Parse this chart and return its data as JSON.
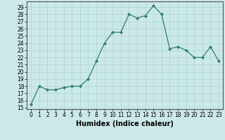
{
  "x": [
    0,
    1,
    2,
    3,
    4,
    5,
    6,
    7,
    8,
    9,
    10,
    11,
    12,
    13,
    14,
    15,
    16,
    17,
    18,
    19,
    20,
    21,
    22,
    23
  ],
  "y": [
    15.5,
    18.0,
    17.5,
    17.5,
    17.8,
    18.0,
    18.0,
    19.0,
    21.5,
    24.0,
    25.5,
    25.5,
    28.0,
    27.5,
    27.8,
    29.2,
    28.0,
    23.2,
    23.5,
    23.0,
    22.0,
    22.0,
    23.5,
    21.5
  ],
  "xlabel": "Humidex (Indice chaleur)",
  "xlim": [
    -0.5,
    23.5
  ],
  "ylim": [
    14.8,
    29.8
  ],
  "yticks": [
    15,
    16,
    17,
    18,
    19,
    20,
    21,
    22,
    23,
    24,
    25,
    26,
    27,
    28,
    29
  ],
  "xticks": [
    0,
    1,
    2,
    3,
    4,
    5,
    6,
    7,
    8,
    9,
    10,
    11,
    12,
    13,
    14,
    15,
    16,
    17,
    18,
    19,
    20,
    21,
    22,
    23
  ],
  "line_color": "#2d7d6d",
  "bg_color": "#cce8e8",
  "grid_color": "#b0d8d8",
  "tick_fontsize": 5.5,
  "label_fontsize": 7
}
